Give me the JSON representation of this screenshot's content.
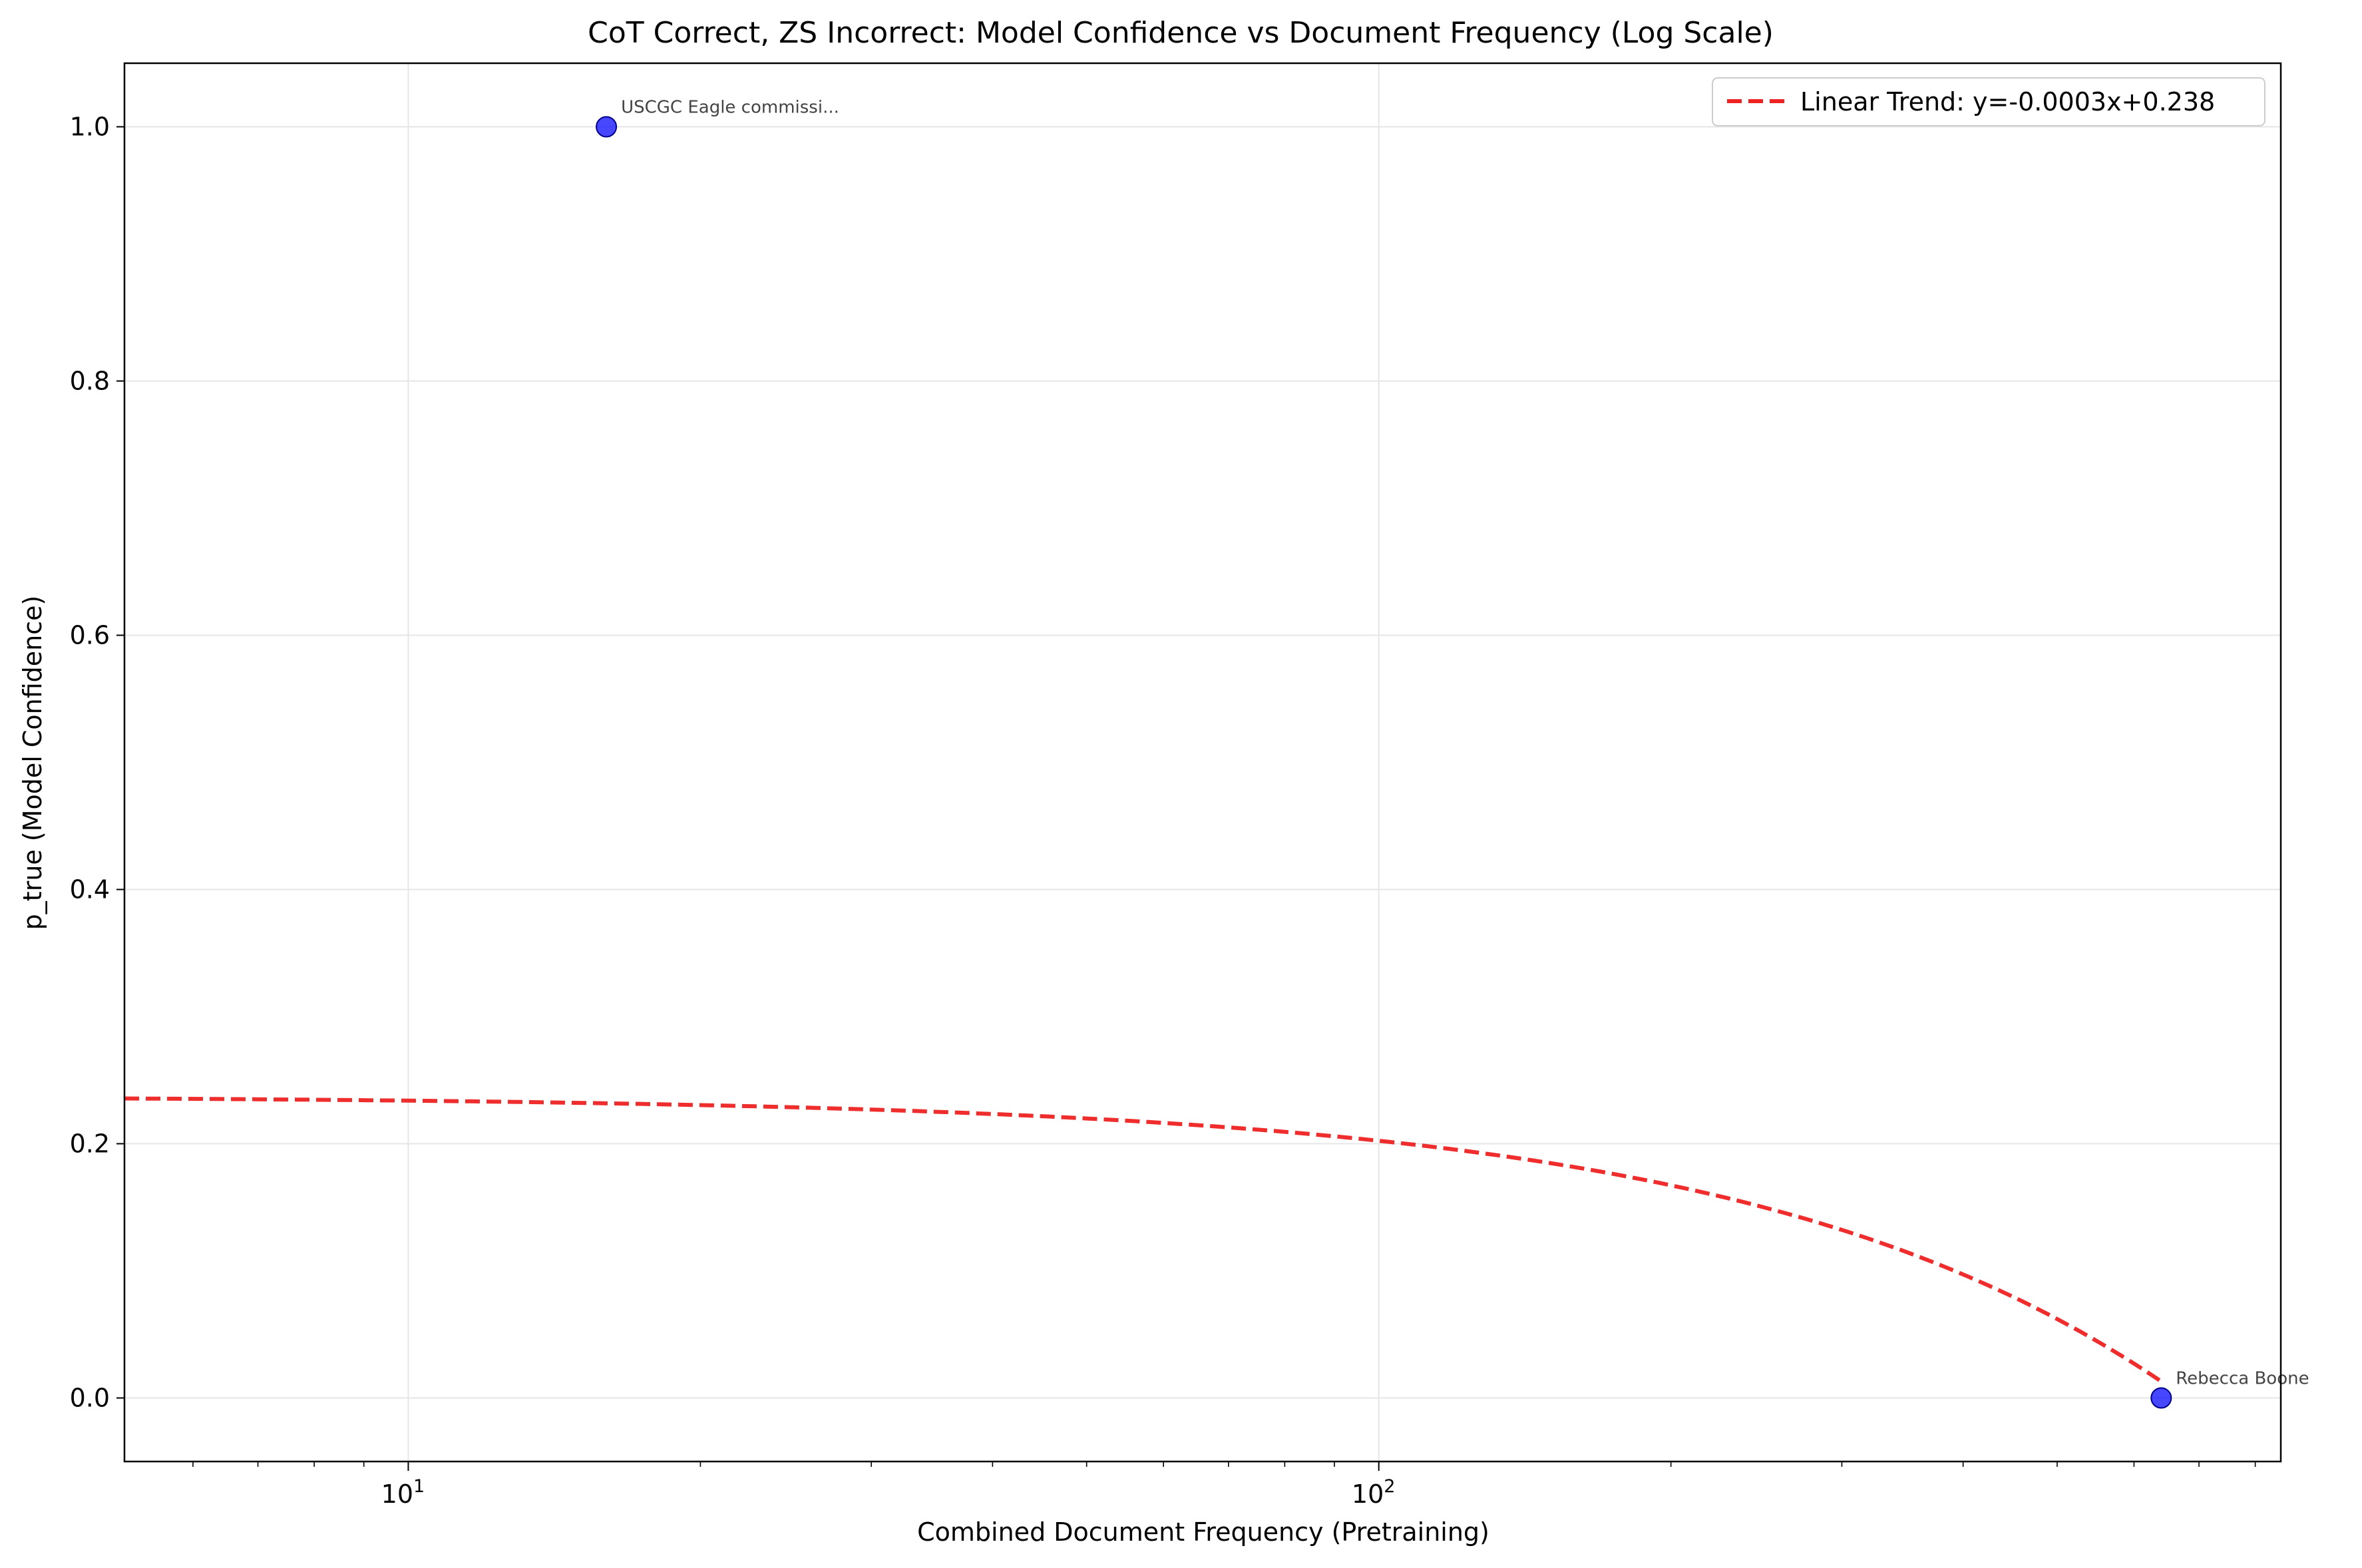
{
  "chart_data": {
    "type": "scatter",
    "title": "CoT Correct, ZS Incorrect: Model Confidence vs Document Frequency (Log Scale)",
    "xlabel": "Combined Document Frequency (Pretraining)",
    "ylabel": "p_true (Model Confidence)",
    "x_scale": "log",
    "xlim": [
      5.1,
      850
    ],
    "ylim": [
      -0.05,
      1.05
    ],
    "x_ticks": [
      {
        "value": 10,
        "base": "10",
        "exp": "1"
      },
      {
        "value": 100,
        "base": "10",
        "exp": "2"
      }
    ],
    "y_ticks": [
      {
        "value": 0.0,
        "label": "0.0"
      },
      {
        "value": 0.2,
        "label": "0.2"
      },
      {
        "value": 0.4,
        "label": "0.4"
      },
      {
        "value": 0.6,
        "label": "0.6"
      },
      {
        "value": 0.8,
        "label": "0.8"
      },
      {
        "value": 1.0,
        "label": "1.0"
      }
    ],
    "grid": true,
    "points": [
      {
        "x": 16,
        "y": 1.0,
        "label": "USCGC Eagle commissi..."
      },
      {
        "x": 640,
        "y": 0.0,
        "label": "Rebecca Boone"
      }
    ],
    "point_color": "#0000ff",
    "trend": {
      "label": "Linear Trend: y=-0.0003x+0.238",
      "slope": -0.0003506,
      "intercept": 0.2374,
      "x_range": [
        5.1,
        640
      ],
      "color": "#ee2222"
    },
    "legend_position": "top-right"
  }
}
